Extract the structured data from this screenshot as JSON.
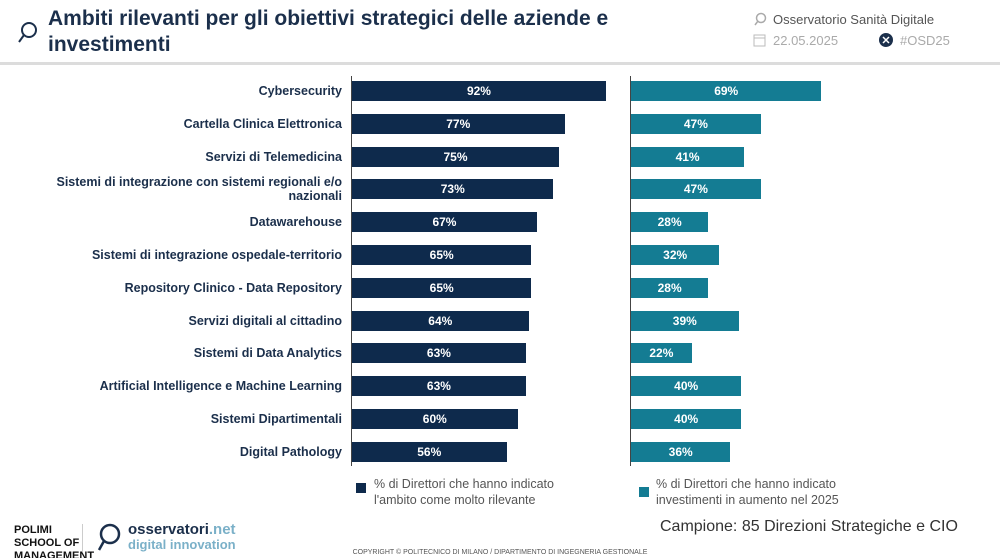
{
  "header": {
    "title": "Ambiti rilevanti per gli obiettivi strategici delle aziende e investimenti",
    "observatory": "Osservatorio Sanità Digitale",
    "date": "22.05.2025",
    "hashtag": "#OSD25"
  },
  "chart_data": {
    "type": "bar",
    "orientation": "horizontal",
    "categories": [
      "Cybersecurity",
      "Cartella Clinica Elettronica",
      "Servizi di Telemedicina",
      "Sistemi di integrazione con sistemi regionali e/o nazionali",
      "Datawarehouse",
      "Sistemi di integrazione ospedale-territorio",
      "Repository Clinico - Data Repository",
      "Servizi digitali al cittadino",
      "Sistemi di Data Analytics",
      "Artificial Intelligence e Machine Learning",
      "Sistemi Dipartimentali",
      "Digital Pathology"
    ],
    "series": [
      {
        "name": "% di Direttori che hanno indicato l'ambito come molto rilevante",
        "color": "#0e2a4c",
        "values": [
          92,
          77,
          75,
          73,
          67,
          65,
          65,
          64,
          63,
          63,
          60,
          56
        ]
      },
      {
        "name": "% di Direttori che hanno indicato investimenti in aumento nel 2025",
        "color": "#147c93",
        "values": [
          69,
          47,
          41,
          47,
          28,
          32,
          28,
          39,
          22,
          40,
          40,
          36
        ]
      }
    ],
    "unit": "%"
  },
  "footer": {
    "sample": "Campione: 85 Direzioni Strategiche e CIO",
    "copyright": "COPYRIGHT © POLITECNICO DI MILANO / DIPARTIMENTO DI INGEGNERIA GESTIONALE",
    "logo1": "POLIMI SCHOOL OF MANAGEMENT",
    "logo2a": "osservatori",
    "logo2b": ".net",
    "logo2c": "digital innovation"
  }
}
